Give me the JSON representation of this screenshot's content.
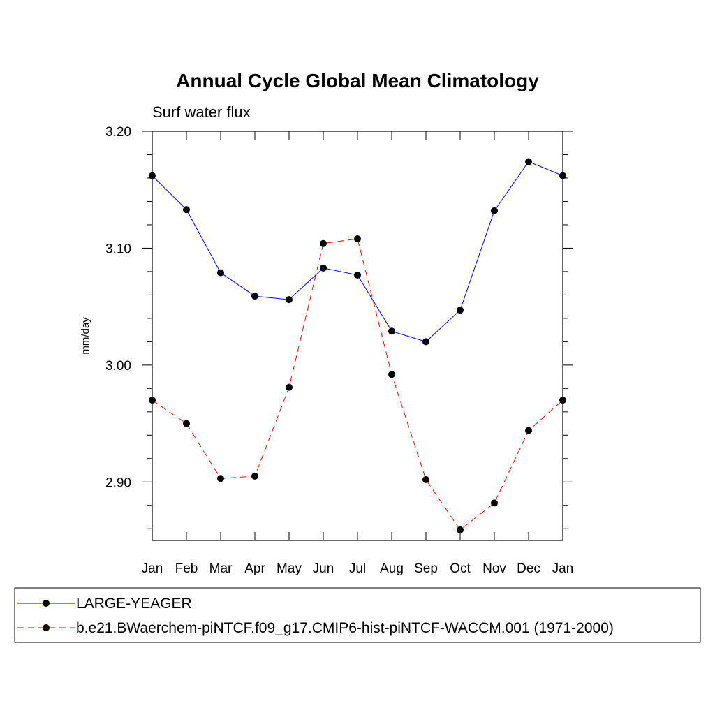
{
  "chart_data": {
    "type": "line",
    "title": "Annual Cycle Global Mean Climatology",
    "subtitle": "Surf water flux",
    "xlabel": "",
    "ylabel": "mm/day",
    "categories": [
      "Jan",
      "Feb",
      "Mar",
      "Apr",
      "May",
      "Jun",
      "Jul",
      "Aug",
      "Sep",
      "Oct",
      "Nov",
      "Dec",
      "Jan"
    ],
    "ylim": [
      2.85,
      3.2
    ],
    "yticks": [
      2.9,
      3.0,
      3.1,
      3.2
    ],
    "ytick_labels": [
      "2.90",
      "3.00",
      "3.10",
      "3.20"
    ],
    "grid": false,
    "legend_position": "bottom",
    "series": [
      {
        "name": "LARGE-YEAGER",
        "color": "#0000ff",
        "dash": "solid",
        "values": [
          3.162,
          3.133,
          3.079,
          3.059,
          3.056,
          3.083,
          3.077,
          3.029,
          3.02,
          3.047,
          3.132,
          3.174,
          3.162
        ]
      },
      {
        "name": "b.e21.BWaerchem-piNTCF.f09_g17.CMIP6-hist-piNTCF-WACCM.001 (1971-2000)",
        "color": "#ff0000",
        "dash": "dashed",
        "values": [
          2.97,
          2.95,
          2.903,
          2.905,
          2.981,
          3.104,
          3.108,
          2.992,
          2.902,
          2.859,
          2.882,
          2.944,
          2.97
        ]
      }
    ]
  }
}
